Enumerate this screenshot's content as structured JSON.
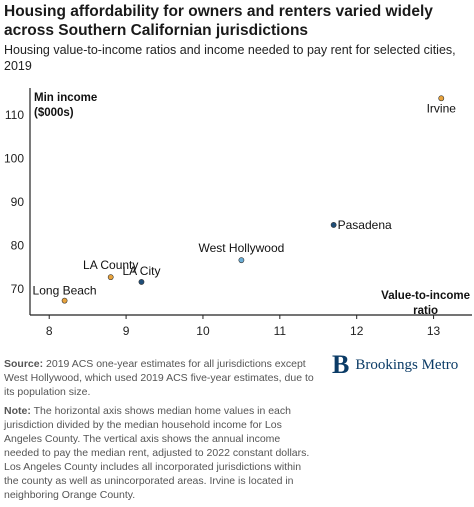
{
  "title": "Housing affordability for owners and renters varied widely across Southern Californian jurisdictions",
  "subtitle": "Housing value-to-income ratios and income needed to pay rent for selected cities, 2019",
  "chart_data": {
    "type": "scatter",
    "xlabel": "Value-to-income ratio",
    "ylabel": "Min income ($000s)",
    "xlim": [
      7.75,
      13.5
    ],
    "ylim": [
      64,
      118
    ],
    "xticks": [
      8,
      9,
      10,
      11,
      12,
      13
    ],
    "yticks": [
      70,
      80,
      90,
      100,
      110
    ],
    "grid": false,
    "points": [
      {
        "label": "Irvine",
        "x": 13.1,
        "y": 113.8,
        "color": "#e8a33d"
      },
      {
        "label": "Pasadena",
        "x": 11.7,
        "y": 84.7,
        "color": "#1f4e79"
      },
      {
        "label": "West Hollywood",
        "x": 10.5,
        "y": 76.6,
        "color": "#6baed6"
      },
      {
        "label": "LA County",
        "x": 8.8,
        "y": 72.7,
        "color": "#e8a33d"
      },
      {
        "label": "LA City",
        "x": 9.2,
        "y": 71.6,
        "color": "#1f4e79"
      },
      {
        "label": "Long Beach",
        "x": 8.2,
        "y": 67.3,
        "color": "#e8a33d"
      }
    ]
  },
  "footer": {
    "source_label": "Source:",
    "source_text": "2019 ACS one-year estimates for all jurisdictions except West Hollywood, which used 2019 ACS five-year estimates, due to its population size.",
    "note_label": "Note:",
    "note_text": "The horizontal axis shows median home values in each jurisdiction divided by the median household income for Los Angeles County. The vertical axis shows the annual income needed to pay the median rent, adjusted to 2022 constant dollars. Los Angeles County includes all incorporated jurisdictions within the county as well as unincorporated areas. Irvine is located in neighboring Orange County."
  },
  "logo": {
    "mark": "B",
    "text": "Brookings Metro"
  }
}
